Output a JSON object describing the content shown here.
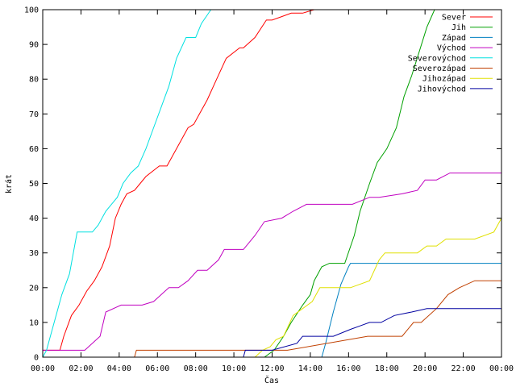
{
  "chart_data": {
    "type": "line",
    "xlabel": "Čas",
    "ylabel": "krát",
    "xlim": [
      0,
      24
    ],
    "ylim": [
      0,
      100
    ],
    "x_unit": "hours",
    "x_ticks": [
      "00:00",
      "02:00",
      "04:00",
      "06:00",
      "08:00",
      "10:00",
      "12:00",
      "14:00",
      "16:00",
      "18:00",
      "20:00",
      "22:00",
      "00:00"
    ],
    "y_ticks": [
      "0",
      "10",
      "20",
      "30",
      "40",
      "50",
      "60",
      "70",
      "80",
      "90",
      "100"
    ],
    "grid": false,
    "legend_position": "top-right",
    "series": [
      {
        "name": "Sever",
        "color": "#ff0000",
        "x": [
          0,
          0.3,
          0.9,
          1.1,
          1.5,
          1.9,
          2.3,
          2.7,
          3.1,
          3.5,
          3.8,
          4.1,
          4.4,
          4.8,
          5.1,
          5.4,
          6.1,
          6.5,
          7.1,
          7.6,
          7.9,
          8.2,
          8.6,
          9.1,
          9.6,
          10.3,
          10.5,
          11.1,
          11.7,
          12.0,
          12.5,
          13.0,
          13.6,
          14.2,
          22.0
        ],
        "y": [
          2,
          2,
          2,
          6,
          12,
          15,
          19,
          22,
          26,
          32,
          40,
          44,
          47,
          48,
          50,
          52,
          55,
          55,
          61,
          66,
          67,
          70,
          74,
          80,
          86,
          89,
          89,
          92,
          97,
          97,
          98,
          99,
          99,
          100,
          100
        ]
      },
      {
        "name": "Jih",
        "color": "#00a000",
        "x": [
          0,
          11.6,
          12.1,
          12.6,
          13.0,
          13.6,
          14.0,
          14.2,
          14.6,
          15.0,
          15.8,
          16.3,
          16.6,
          17.1,
          17.5,
          18.0,
          18.5,
          18.9,
          19.3,
          19.7,
          20.1,
          20.5
        ],
        "y": [
          0,
          0,
          2,
          6,
          10,
          15,
          18,
          22,
          26,
          27,
          27,
          35,
          42,
          50,
          56,
          60,
          66,
          75,
          81,
          88,
          95,
          100
        ]
      },
      {
        "name": "Západ",
        "color": "#0080c0",
        "x": [
          0,
          14.6,
          14.8,
          15.2,
          15.6,
          16.0,
          16.1,
          24.0
        ],
        "y": [
          0,
          0,
          4,
          13,
          21,
          26,
          27,
          27
        ]
      },
      {
        "name": "Východ",
        "color": "#c000c0",
        "x": [
          0,
          1.9,
          2.2,
          2.6,
          3.0,
          3.3,
          4.1,
          5.2,
          5.8,
          6.2,
          6.6,
          7.1,
          7.6,
          8.1,
          8.6,
          9.2,
          9.5,
          9.9,
          10.5,
          11.1,
          11.6,
          12.5,
          13.1,
          13.8,
          14.6,
          16.2,
          17.1,
          17.6,
          18.8,
          19.6,
          20.0,
          20.6,
          21.3,
          22.6,
          24.0
        ],
        "y": [
          2,
          2,
          2,
          4,
          6,
          13,
          15,
          15,
          16,
          18,
          20,
          20,
          22,
          25,
          25,
          28,
          31,
          31,
          31,
          35,
          39,
          40,
          42,
          44,
          44,
          44,
          46,
          46,
          47,
          48,
          51,
          51,
          53,
          53,
          53
        ]
      },
      {
        "name": "Severovýchod",
        "color": "#00e0e0",
        "x": [
          0,
          0.2,
          0.6,
          1.0,
          1.4,
          1.8,
          2.6,
          2.9,
          3.3,
          3.6,
          3.9,
          4.2,
          4.6,
          5.0,
          5.4,
          5.8,
          6.2,
          6.6,
          7.0,
          7.5,
          8.0,
          8.3,
          8.8
        ],
        "y": [
          0,
          2,
          10,
          18,
          24,
          36,
          36,
          38,
          42,
          44,
          46,
          50,
          53,
          55,
          60,
          66,
          72,
          78,
          86,
          92,
          92,
          96,
          100
        ]
      },
      {
        "name": "Severozápad",
        "color": "#c04000",
        "x": [
          0,
          4.8,
          4.9,
          12.2,
          12.8,
          17.0,
          18.8,
          19.4,
          19.8,
          20.6,
          21.2,
          21.8,
          22.6,
          24.0
        ],
        "y": [
          0,
          0,
          2,
          2,
          2,
          6,
          6,
          10,
          10,
          14,
          18,
          20,
          22,
          22
        ]
      },
      {
        "name": "Jihozápad",
        "color": "#e0e000",
        "x": [
          0,
          11.1,
          11.5,
          11.9,
          12.2,
          12.6,
          13.1,
          13.6,
          14.1,
          14.5,
          14.9,
          16.1,
          17.1,
          17.6,
          17.9,
          18.5,
          19.6,
          20.1,
          20.6,
          21.1,
          22.6,
          23.6,
          24.0
        ],
        "y": [
          0,
          0,
          2,
          3,
          5,
          6,
          12,
          14,
          16,
          20,
          20,
          20,
          22,
          28,
          30,
          30,
          30,
          32,
          32,
          34,
          34,
          36,
          40
        ]
      },
      {
        "name": "Jihovýchod",
        "color": "#0000a0",
        "x": [
          0,
          10.5,
          10.6,
          11.5,
          12.0,
          13.3,
          13.6,
          14.8,
          15.2,
          16.1,
          16.6,
          17.1,
          17.7,
          18.4,
          19.3,
          20.1,
          20.6,
          24.0
        ],
        "y": [
          0,
          0,
          2,
          2,
          2,
          4,
          6,
          6,
          6,
          8,
          9,
          10,
          10,
          12,
          13,
          14,
          14,
          14
        ]
      }
    ]
  }
}
